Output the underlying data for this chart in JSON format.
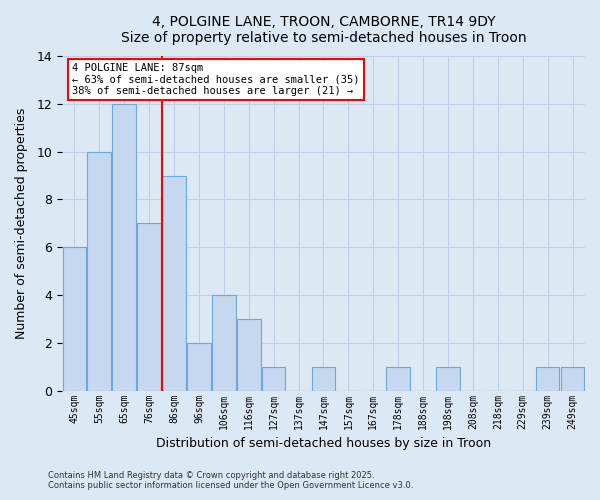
{
  "title1": "4, POLGINE LANE, TROON, CAMBORNE, TR14 9DY",
  "title2": "Size of property relative to semi-detached houses in Troon",
  "xlabel": "Distribution of semi-detached houses by size in Troon",
  "ylabel": "Number of semi-detached properties",
  "categories": [
    "45sqm",
    "55sqm",
    "65sqm",
    "76sqm",
    "86sqm",
    "96sqm",
    "106sqm",
    "116sqm",
    "127sqm",
    "137sqm",
    "147sqm",
    "157sqm",
    "167sqm",
    "178sqm",
    "188sqm",
    "198sqm",
    "208sqm",
    "218sqm",
    "229sqm",
    "239sqm",
    "249sqm"
  ],
  "values": [
    6,
    10,
    12,
    7,
    9,
    2,
    4,
    3,
    1,
    0,
    1,
    0,
    0,
    1,
    0,
    1,
    0,
    0,
    0,
    1,
    1
  ],
  "bar_color": "#c5d8ef",
  "bar_edge_color": "#6aaad4",
  "ylim": [
    0,
    14
  ],
  "yticks": [
    0,
    2,
    4,
    6,
    8,
    10,
    12,
    14
  ],
  "vline_bin_index": 4,
  "annotation_text": "4 POLGINE LANE: 87sqm\n← 63% of semi-detached houses are smaller (35)\n38% of semi-detached houses are larger (21) →",
  "footer1": "Contains HM Land Registry data © Crown copyright and database right 2025.",
  "footer2": "Contains public sector information licensed under the Open Government Licence v3.0.",
  "background_color": "#dde8f5",
  "grid_color": "#c0d0e8"
}
